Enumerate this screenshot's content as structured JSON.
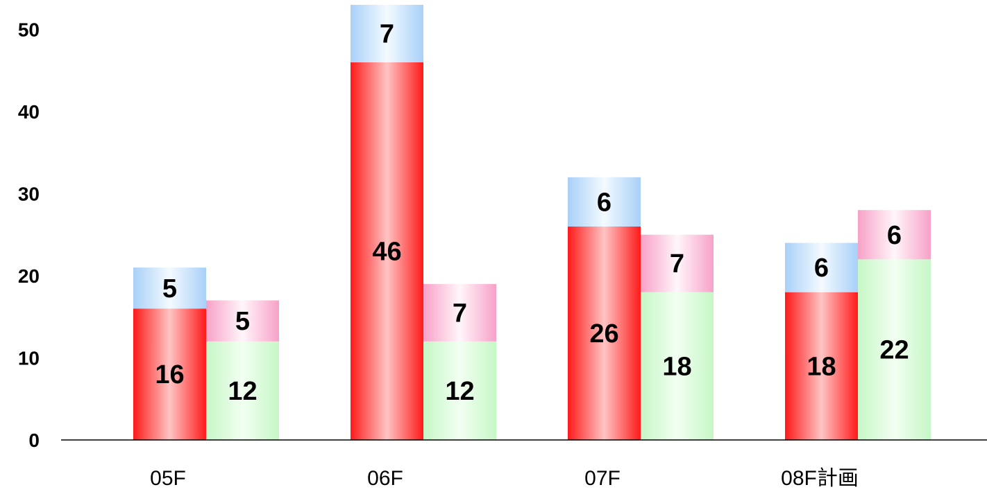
{
  "chart_data": {
    "type": "bar",
    "stacked": true,
    "grouped": true,
    "categories": [
      "05F",
      "06F",
      "07F",
      "08F計画"
    ],
    "ylim": [
      0,
      53
    ],
    "yticks": [
      0,
      10,
      20,
      30,
      40,
      50
    ],
    "ytick_labels": [
      "0",
      "10",
      "20",
      "30",
      "40",
      "50"
    ],
    "grid": false,
    "legend": "none",
    "groups": [
      {
        "segments": [
          {
            "values": [
              16,
              46,
              26,
              18
            ],
            "color": "#ff1a1a"
          },
          {
            "values": [
              5,
              7,
              6,
              6
            ],
            "color": "#a8d0f8"
          }
        ]
      },
      {
        "segments": [
          {
            "values": [
              12,
              12,
              18,
              22
            ],
            "color": "#c6f7c6"
          },
          {
            "values": [
              5,
              7,
              7,
              6
            ],
            "color": "#f7a1c8"
          }
        ]
      }
    ]
  }
}
